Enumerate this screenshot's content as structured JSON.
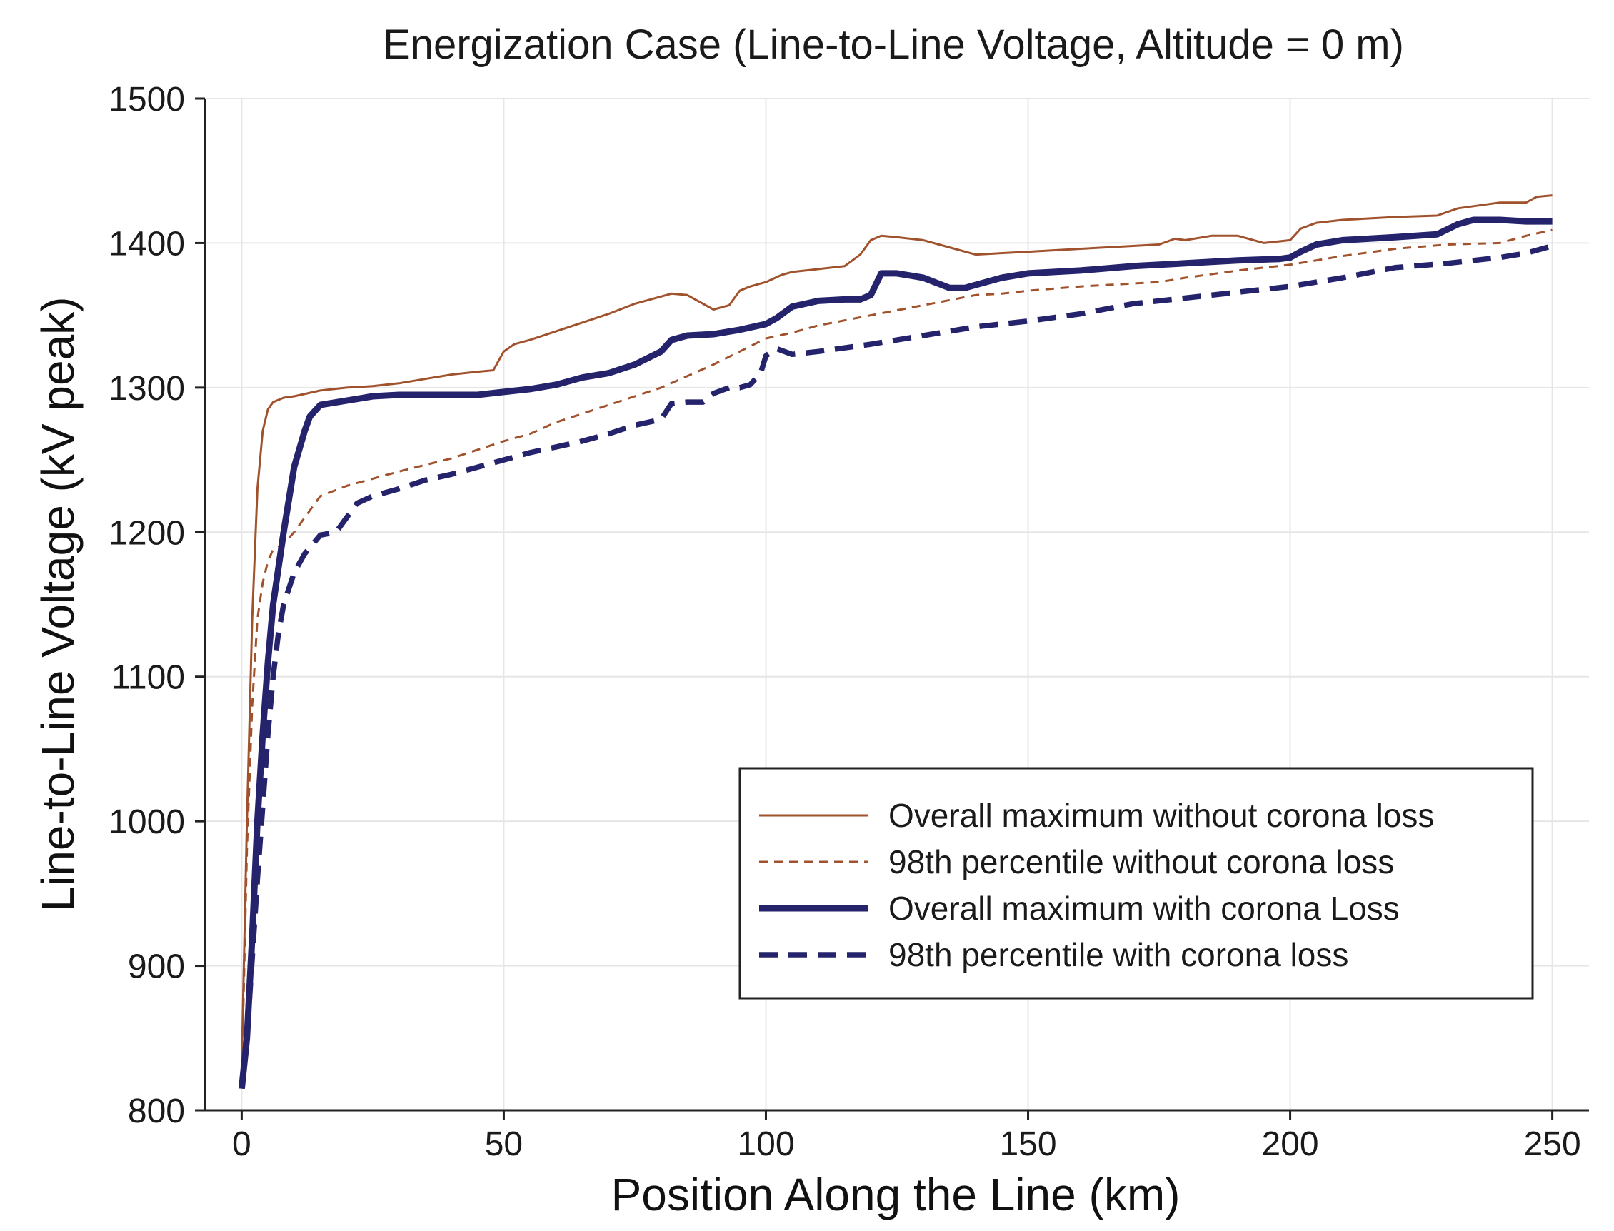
{
  "chart_data": {
    "type": "line",
    "title": "Energization Case (Line-to-Line Voltage, Altitude = 0 m)",
    "xlabel": "Position Along the Line (km)",
    "ylabel": "Line-to-Line Voltage (kV peak)",
    "xlim": [
      -7,
      257
    ],
    "ylim": [
      800,
      1500
    ],
    "xticks": [
      0,
      50,
      100,
      150,
      200,
      250
    ],
    "yticks": [
      800,
      900,
      1000,
      1100,
      1200,
      1300,
      1400,
      1500
    ],
    "xtick_labels": [
      "0",
      "50",
      "100",
      "150",
      "200",
      "250"
    ],
    "ytick_labels": [
      "800",
      "900",
      "1000",
      "1100",
      "1200",
      "1300",
      "1400",
      "1500"
    ],
    "grid": true,
    "legend_position": "lower-right",
    "series": [
      {
        "name": "Overall maximum without corona loss",
        "color": "#a0522d",
        "style": "solid-thin",
        "x": [
          0,
          1,
          2,
          3,
          4,
          5,
          6,
          8,
          10,
          15,
          20,
          25,
          30,
          35,
          40,
          45,
          48,
          50,
          52,
          55,
          60,
          65,
          70,
          75,
          80,
          82,
          85,
          88,
          90,
          93,
          95,
          97,
          100,
          103,
          105,
          110,
          115,
          118,
          120,
          122,
          125,
          130,
          135,
          140,
          150,
          160,
          170,
          175,
          178,
          180,
          185,
          190,
          195,
          200,
          202,
          205,
          210,
          220,
          228,
          232,
          240,
          245,
          247,
          250
        ],
        "y": [
          830,
          1000,
          1140,
          1230,
          1270,
          1285,
          1290,
          1293,
          1294,
          1298,
          1300,
          1301,
          1303,
          1306,
          1309,
          1311,
          1312,
          1325,
          1330,
          1333,
          1339,
          1345,
          1351,
          1358,
          1363,
          1365,
          1364,
          1358,
          1354,
          1357,
          1367,
          1370,
          1373,
          1378,
          1380,
          1382,
          1384,
          1392,
          1402,
          1405,
          1404,
          1402,
          1397,
          1392,
          1394,
          1396,
          1398,
          1399,
          1403,
          1402,
          1405,
          1405,
          1400,
          1402,
          1410,
          1414,
          1416,
          1418,
          1419,
          1424,
          1428,
          1428,
          1432,
          1433
        ]
      },
      {
        "name": "98th percentile without corona loss",
        "color": "#a0522d",
        "style": "dashed-thin",
        "x": [
          0,
          1,
          2,
          3,
          4,
          5,
          6,
          8,
          10,
          12,
          15,
          20,
          25,
          30,
          40,
          45,
          50,
          55,
          60,
          65,
          70,
          75,
          80,
          85,
          90,
          95,
          100,
          105,
          110,
          120,
          130,
          140,
          145,
          150,
          160,
          170,
          175,
          180,
          190,
          200,
          210,
          220,
          230,
          240,
          245,
          250
        ],
        "y": [
          820,
          980,
          1080,
          1140,
          1165,
          1180,
          1188,
          1192,
          1200,
          1210,
          1225,
          1232,
          1237,
          1242,
          1251,
          1257,
          1263,
          1268,
          1276,
          1282,
          1288,
          1294,
          1300,
          1308,
          1316,
          1325,
          1334,
          1338,
          1343,
          1350,
          1357,
          1364,
          1365,
          1367,
          1370,
          1372,
          1373,
          1376,
          1381,
          1385,
          1391,
          1396,
          1399,
          1400,
          1405,
          1409
        ]
      },
      {
        "name": "Overall maximum with corona Loss",
        "color": "#25236b",
        "style": "solid-thick",
        "x": [
          0,
          1,
          2,
          3,
          4,
          5,
          6,
          8,
          10,
          12,
          13,
          15,
          20,
          25,
          30,
          35,
          40,
          45,
          50,
          55,
          60,
          65,
          70,
          75,
          80,
          82,
          85,
          90,
          95,
          100,
          102,
          105,
          110,
          115,
          118,
          120,
          122,
          125,
          130,
          135,
          138,
          140,
          145,
          150,
          160,
          170,
          180,
          190,
          198,
          200,
          202,
          205,
          210,
          220,
          228,
          232,
          235,
          240,
          245,
          250
        ],
        "y": [
          815,
          850,
          920,
          1000,
          1060,
          1110,
          1150,
          1200,
          1245,
          1270,
          1280,
          1288,
          1291,
          1294,
          1295,
          1295,
          1295,
          1295,
          1297,
          1299,
          1302,
          1307,
          1310,
          1316,
          1325,
          1333,
          1336,
          1337,
          1340,
          1344,
          1348,
          1356,
          1360,
          1361,
          1361,
          1364,
          1379,
          1379,
          1376,
          1369,
          1369,
          1371,
          1376,
          1379,
          1381,
          1384,
          1386,
          1388,
          1389,
          1390,
          1394,
          1399,
          1402,
          1404,
          1406,
          1413,
          1416,
          1416,
          1415,
          1415
        ]
      },
      {
        "name": "98th percentile with corona loss",
        "color": "#25236b",
        "style": "dashed-thick",
        "x": [
          0,
          1,
          2,
          3,
          4,
          5,
          6,
          7,
          8,
          10,
          12,
          15,
          18,
          20,
          22,
          25,
          30,
          35,
          40,
          45,
          50,
          55,
          60,
          65,
          70,
          75,
          80,
          82,
          85,
          88,
          90,
          93,
          95,
          97,
          99,
          100,
          102,
          105,
          110,
          120,
          130,
          140,
          150,
          160,
          170,
          180,
          190,
          200,
          210,
          220,
          230,
          240,
          245,
          250
        ],
        "y": [
          815,
          850,
          905,
          960,
          1010,
          1060,
          1100,
          1130,
          1150,
          1172,
          1185,
          1198,
          1200,
          1210,
          1220,
          1225,
          1230,
          1236,
          1240,
          1245,
          1250,
          1255,
          1259,
          1263,
          1268,
          1274,
          1278,
          1289,
          1290,
          1290,
          1296,
          1300,
          1300,
          1302,
          1310,
          1322,
          1327,
          1323,
          1325,
          1330,
          1336,
          1342,
          1346,
          1351,
          1358,
          1362,
          1366,
          1370,
          1376,
          1383,
          1386,
          1390,
          1393,
          1398
        ]
      }
    ]
  }
}
